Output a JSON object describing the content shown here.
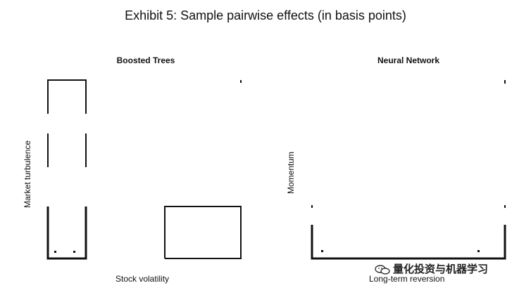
{
  "chart_data": [
    {
      "type": "heatmap",
      "title": "Exhibit 5: Sample pairwise effects (in basis points)",
      "panel_title": "Boosted Trees",
      "xlabel": "Stock volatility",
      "ylabel": "Market turbulence"
    },
    {
      "type": "heatmap",
      "panel_title": "Neural Network",
      "xlabel": "Long-term reversion",
      "ylabel": "Momentum"
    }
  ],
  "watermark": {
    "text": "量化投资与机器学习",
    "icon": "wechat-icon"
  },
  "colors": {
    "axis": "#111111",
    "background": "#ffffff"
  }
}
